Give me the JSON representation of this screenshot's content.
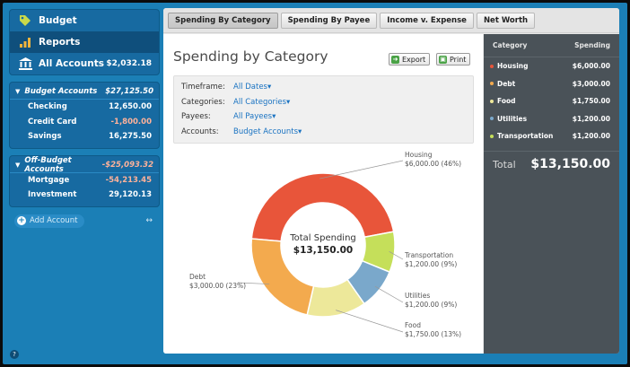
{
  "sidebar": {
    "nav": [
      {
        "label": "Budget",
        "icon": "budget-tag-icon"
      },
      {
        "label": "Reports",
        "icon": "reports-chart-icon"
      },
      {
        "label": "All Accounts",
        "icon": "bank-icon",
        "amount": "$2,032.18"
      }
    ],
    "budget_group": {
      "label": "Budget Accounts",
      "total": "$27,125.50",
      "accounts": [
        {
          "name": "Checking",
          "amount": "12,650.00"
        },
        {
          "name": "Credit Card",
          "amount": "-1,800.00"
        },
        {
          "name": "Savings",
          "amount": "16,275.50"
        }
      ]
    },
    "offbudget_group": {
      "label": "Off-Budget Accounts",
      "total": "-$25,093.32",
      "accounts": [
        {
          "name": "Mortgage",
          "amount": "-54,213.45"
        },
        {
          "name": "Investment",
          "amount": "29,120.13"
        }
      ]
    },
    "add_account": "Add Account",
    "swap_symbol": "↔"
  },
  "tabs": [
    "Spending By Category",
    "Spending By Payee",
    "Income v. Expense",
    "Net Worth"
  ],
  "report": {
    "title": "Spending by Category",
    "export_label": "Export",
    "print_label": "Print",
    "filters": [
      {
        "label": "Timeframe:",
        "value": "All Dates▾"
      },
      {
        "label": "Categories:",
        "value": "All Categories▾"
      },
      {
        "label": "Payees:",
        "value": "All Payees▾"
      },
      {
        "label": "Accounts:",
        "value": "Budget Accounts▾"
      }
    ],
    "center_label": "Total Spending",
    "center_value": "$13,150.00"
  },
  "chart_data": {
    "type": "pie",
    "title": "",
    "center_label": "Total Spending",
    "center_value": "$13,150.00",
    "slices": [
      {
        "name": "Housing",
        "value": 6000.0,
        "label": "$6,000.00 (46%)",
        "color": "#e8553a"
      },
      {
        "name": "Transportation",
        "value": 1200.0,
        "label": "$1,200.00 (9%)",
        "color": "#c5df5a"
      },
      {
        "name": "Utilities",
        "value": 1200.0,
        "label": "$1,200.00 (9%)",
        "color": "#7aa8cb"
      },
      {
        "name": "Food",
        "value": 1750.0,
        "label": "$1,750.00 (13%)",
        "color": "#ede89a"
      },
      {
        "name": "Debt",
        "value": 3000.0,
        "label": "$3,000.00 (23%)",
        "color": "#f3aa4e"
      }
    ]
  },
  "summary": {
    "col_category": "Category",
    "col_spending": "Spending",
    "rows": [
      {
        "name": "Housing",
        "amount": "$6,000.00",
        "color": "#e8553a"
      },
      {
        "name": "Debt",
        "amount": "$3,000.00",
        "color": "#f3aa4e"
      },
      {
        "name": "Food",
        "amount": "$1,750.00",
        "color": "#ede89a"
      },
      {
        "name": "Utilities",
        "amount": "$1,200.00",
        "color": "#7aa8cb"
      },
      {
        "name": "Transportation",
        "amount": "$1,200.00",
        "color": "#c5df5a"
      }
    ],
    "total_label": "Total",
    "total_value": "$13,150.00"
  }
}
